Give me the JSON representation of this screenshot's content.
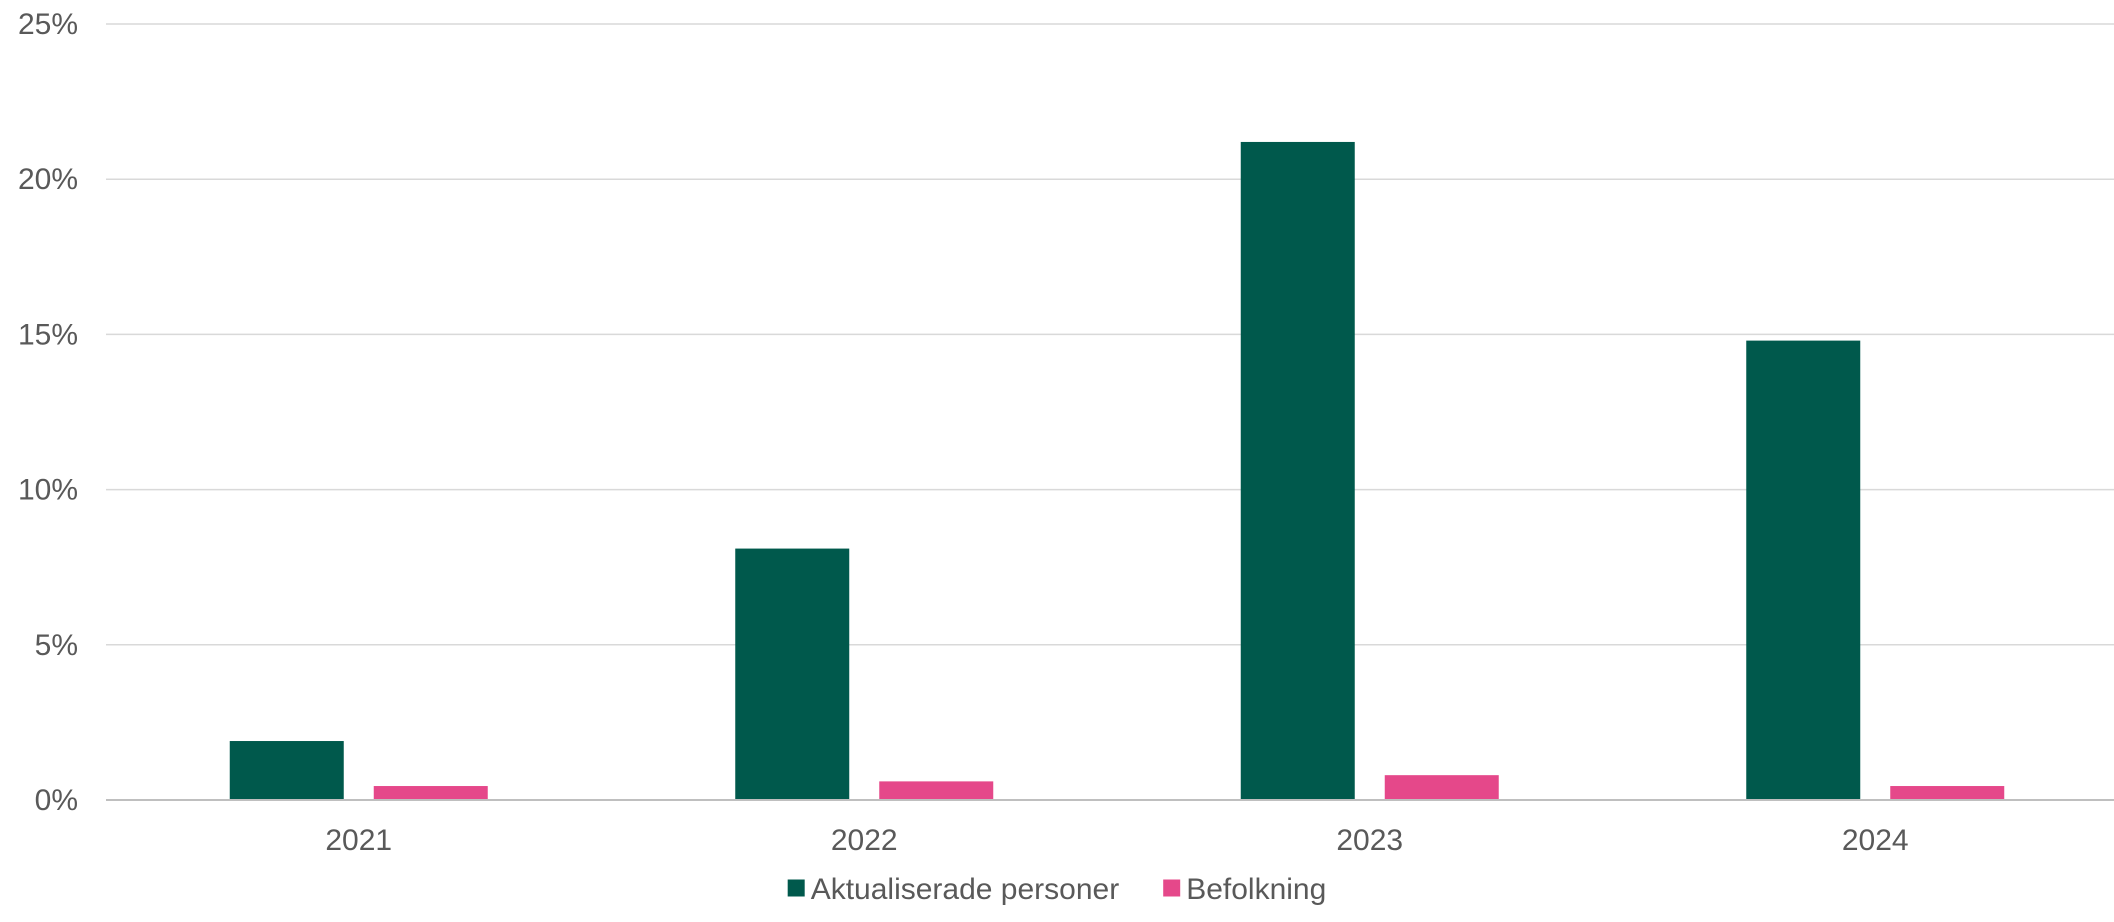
{
  "chart_data": {
    "type": "bar",
    "title": "",
    "xlabel": "",
    "ylabel": "",
    "categories": [
      "2021",
      "2022",
      "2023",
      "2024"
    ],
    "series": [
      {
        "name": "Aktualiserade personer",
        "values": [
          1.9,
          8.1,
          21.2,
          14.8
        ],
        "color": "#00594C"
      },
      {
        "name": "Befolkning",
        "values": [
          0.45,
          0.6,
          0.8,
          0.45
        ],
        "color": "#E5488A"
      }
    ],
    "ylim": [
      0,
      25
    ],
    "yticks": [
      0,
      5,
      10,
      15,
      20,
      25
    ],
    "ytick_labels": [
      "0%",
      "5%",
      "10%",
      "15%",
      "20%",
      "25%"
    ],
    "grid": true,
    "gridline_color": "#D9D9D9",
    "legend": "bottom-center"
  }
}
